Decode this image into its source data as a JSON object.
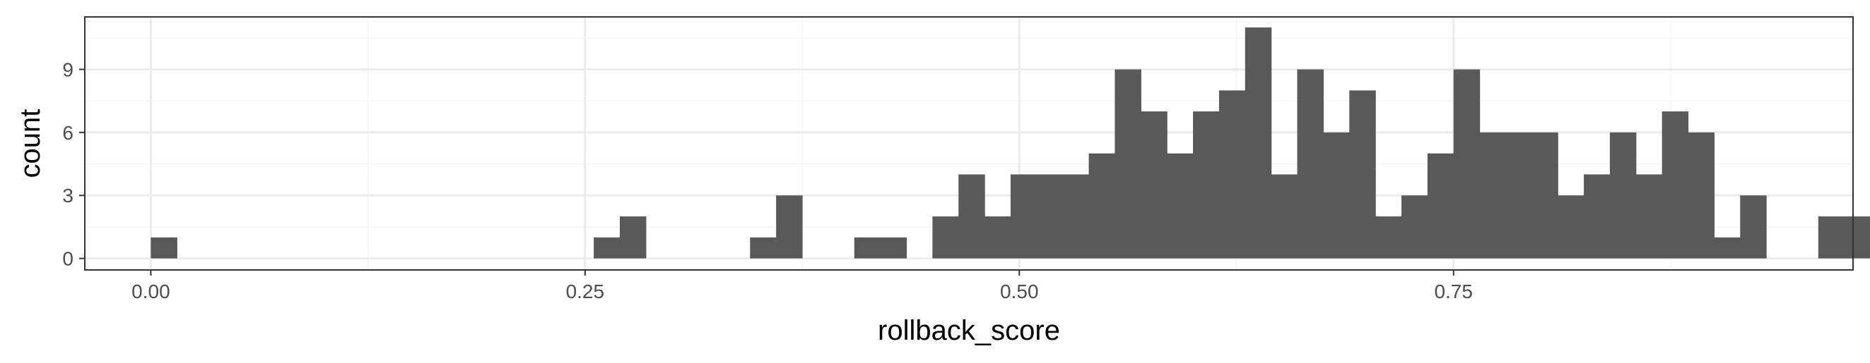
{
  "chart_data": {
    "type": "bar",
    "xlabel": "rollback_score",
    "ylabel": "count",
    "xlim": [
      -0.038,
      0.98
    ],
    "ylim": [
      -0.55,
      11.5
    ],
    "x_ticks": [
      0.0,
      0.25,
      0.5,
      0.75
    ],
    "x_tick_labels": [
      "0.00",
      "0.25",
      "0.50",
      "0.75"
    ],
    "y_ticks": [
      0,
      3,
      6,
      9
    ],
    "y_tick_labels": [
      "0",
      "3",
      "6",
      "9"
    ],
    "bin_width": 0.015,
    "bin_start": 0.0075,
    "values": [
      1,
      0,
      0,
      0,
      0,
      0,
      0,
      0,
      0,
      0,
      0,
      0,
      0,
      0,
      0,
      0,
      0,
      1,
      2,
      0,
      0,
      0,
      0,
      1,
      3,
      0,
      0,
      1,
      1,
      0,
      2,
      4,
      2,
      4,
      4,
      4,
      5,
      9,
      7,
      5,
      7,
      8,
      11,
      4,
      9,
      6,
      8,
      2,
      3,
      5,
      9,
      6,
      6,
      6,
      3,
      4,
      6,
      4,
      7,
      6,
      1,
      3,
      0,
      0,
      2,
      2
    ],
    "grid": true,
    "legend": "none",
    "colors": {
      "bar": "#595959",
      "panel_border": "#333333",
      "grid_major": "#ebebeb",
      "grid_minor": "#f5f5f5",
      "tick_label": "#4d4d4d"
    }
  }
}
